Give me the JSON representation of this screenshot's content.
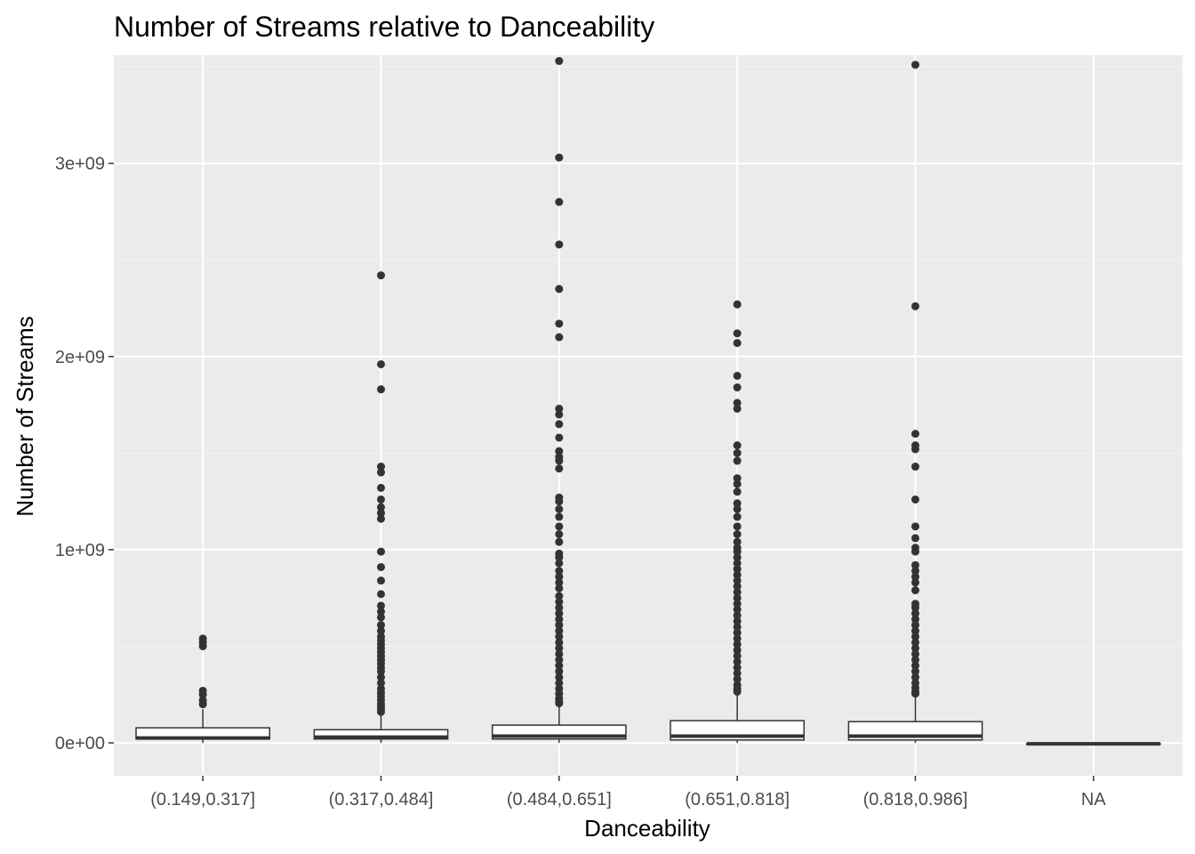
{
  "chart_data": {
    "type": "box",
    "title": "Number of Streams relative to Danceability",
    "xlabel": "Danceability",
    "ylabel": "Number of Streams",
    "ylim": [
      -170000000,
      3560000000
    ],
    "y_ticks": [
      0,
      1000000000,
      2000000000,
      3000000000
    ],
    "y_tick_labels": [
      "0e+00",
      "1e+09",
      "2e+09",
      "3e+09"
    ],
    "grid": true,
    "colors": {
      "panel_background": "#ebebeb",
      "grid_major": "#ffffff",
      "grid_minor": "#f4f4f4",
      "box_fill": "#ffffff",
      "box_line": "#333333",
      "outlier": "#333333",
      "tick_label": "#4d4d4d"
    },
    "categories": [
      "(0.149,0.317]",
      "(0.317,0.484]",
      "(0.484,0.651]",
      "(0.651,0.818]",
      "(0.818,0.986]",
      "NA"
    ],
    "boxes": [
      {
        "category": "(0.149,0.317]",
        "whisker_low": 0,
        "q1": 20000000,
        "median": 25000000,
        "q3": 78000000,
        "whisker_high": 175000000,
        "outliers": [
          540000000,
          520000000,
          500000000,
          270000000,
          250000000,
          220000000,
          200000000
        ]
      },
      {
        "category": "(0.317,0.484]",
        "whisker_low": 0,
        "q1": 20000000,
        "median": 30000000,
        "q3": 68000000,
        "whisker_high": 145000000,
        "outliers": [
          2420000000,
          1960000000,
          1830000000,
          1430000000,
          1400000000,
          1320000000,
          1260000000,
          1220000000,
          1190000000,
          1160000000,
          990000000,
          910000000,
          840000000,
          770000000,
          710000000,
          680000000,
          650000000,
          610000000,
          580000000,
          550000000,
          530000000,
          510000000,
          490000000,
          470000000,
          450000000,
          430000000,
          410000000,
          390000000,
          370000000,
          340000000,
          310000000,
          280000000,
          260000000,
          240000000,
          220000000,
          200000000,
          185000000,
          170000000,
          160000000
        ]
      },
      {
        "category": "(0.484,0.651]",
        "whisker_low": 0,
        "q1": 20000000,
        "median": 35000000,
        "q3": 92000000,
        "whisker_high": 195000000,
        "outliers": [
          3530000000,
          3030000000,
          2800000000,
          2580000000,
          2350000000,
          2170000000,
          2100000000,
          1730000000,
          1700000000,
          1650000000,
          1580000000,
          1510000000,
          1480000000,
          1460000000,
          1420000000,
          1270000000,
          1250000000,
          1210000000,
          1170000000,
          1120000000,
          1080000000,
          1040000000,
          980000000,
          960000000,
          930000000,
          890000000,
          860000000,
          830000000,
          800000000,
          760000000,
          730000000,
          700000000,
          670000000,
          640000000,
          610000000,
          580000000,
          550000000,
          520000000,
          490000000,
          460000000,
          430000000,
          400000000,
          370000000,
          340000000,
          310000000,
          280000000,
          255000000,
          230000000,
          215000000,
          205000000
        ]
      },
      {
        "category": "(0.651,0.818]",
        "whisker_low": 0,
        "q1": 15000000,
        "median": 35000000,
        "q3": 115000000,
        "whisker_high": 255000000,
        "outliers": [
          2270000000,
          2120000000,
          2070000000,
          1900000000,
          1840000000,
          1760000000,
          1730000000,
          1540000000,
          1500000000,
          1460000000,
          1370000000,
          1340000000,
          1300000000,
          1240000000,
          1210000000,
          1170000000,
          1120000000,
          1080000000,
          1040000000,
          1010000000,
          990000000,
          960000000,
          930000000,
          900000000,
          870000000,
          840000000,
          810000000,
          780000000,
          750000000,
          720000000,
          690000000,
          660000000,
          630000000,
          600000000,
          570000000,
          540000000,
          510000000,
          480000000,
          450000000,
          420000000,
          390000000,
          360000000,
          330000000,
          300000000,
          280000000,
          265000000
        ]
      },
      {
        "category": "(0.818,0.986]",
        "whisker_low": 0,
        "q1": 15000000,
        "median": 35000000,
        "q3": 110000000,
        "whisker_high": 245000000,
        "outliers": [
          3510000000,
          2260000000,
          1600000000,
          1540000000,
          1520000000,
          1430000000,
          1260000000,
          1120000000,
          1060000000,
          1010000000,
          990000000,
          920000000,
          890000000,
          860000000,
          830000000,
          790000000,
          720000000,
          700000000,
          670000000,
          640000000,
          610000000,
          580000000,
          550000000,
          520000000,
          490000000,
          460000000,
          430000000,
          400000000,
          370000000,
          340000000,
          310000000,
          285000000,
          265000000,
          255000000
        ]
      },
      {
        "category": "NA",
        "whisker_low": -5000000,
        "q1": -5000000,
        "median": -5000000,
        "q3": -5000000,
        "whisker_high": -5000000,
        "outliers": []
      }
    ]
  }
}
